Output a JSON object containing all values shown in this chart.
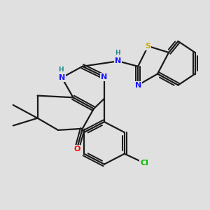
{
  "background_color": "#e0e0e0",
  "bond_color": "#1a1a1a",
  "bond_width": 1.6,
  "atom_colors": {
    "N": "#1515ff",
    "O": "#ff0000",
    "S": "#ccaa00",
    "Cl": "#00bb00",
    "C": "#1a1a1a",
    "NH_color": "#228888"
  },
  "figsize": [
    3.0,
    3.0
  ],
  "dpi": 100
}
